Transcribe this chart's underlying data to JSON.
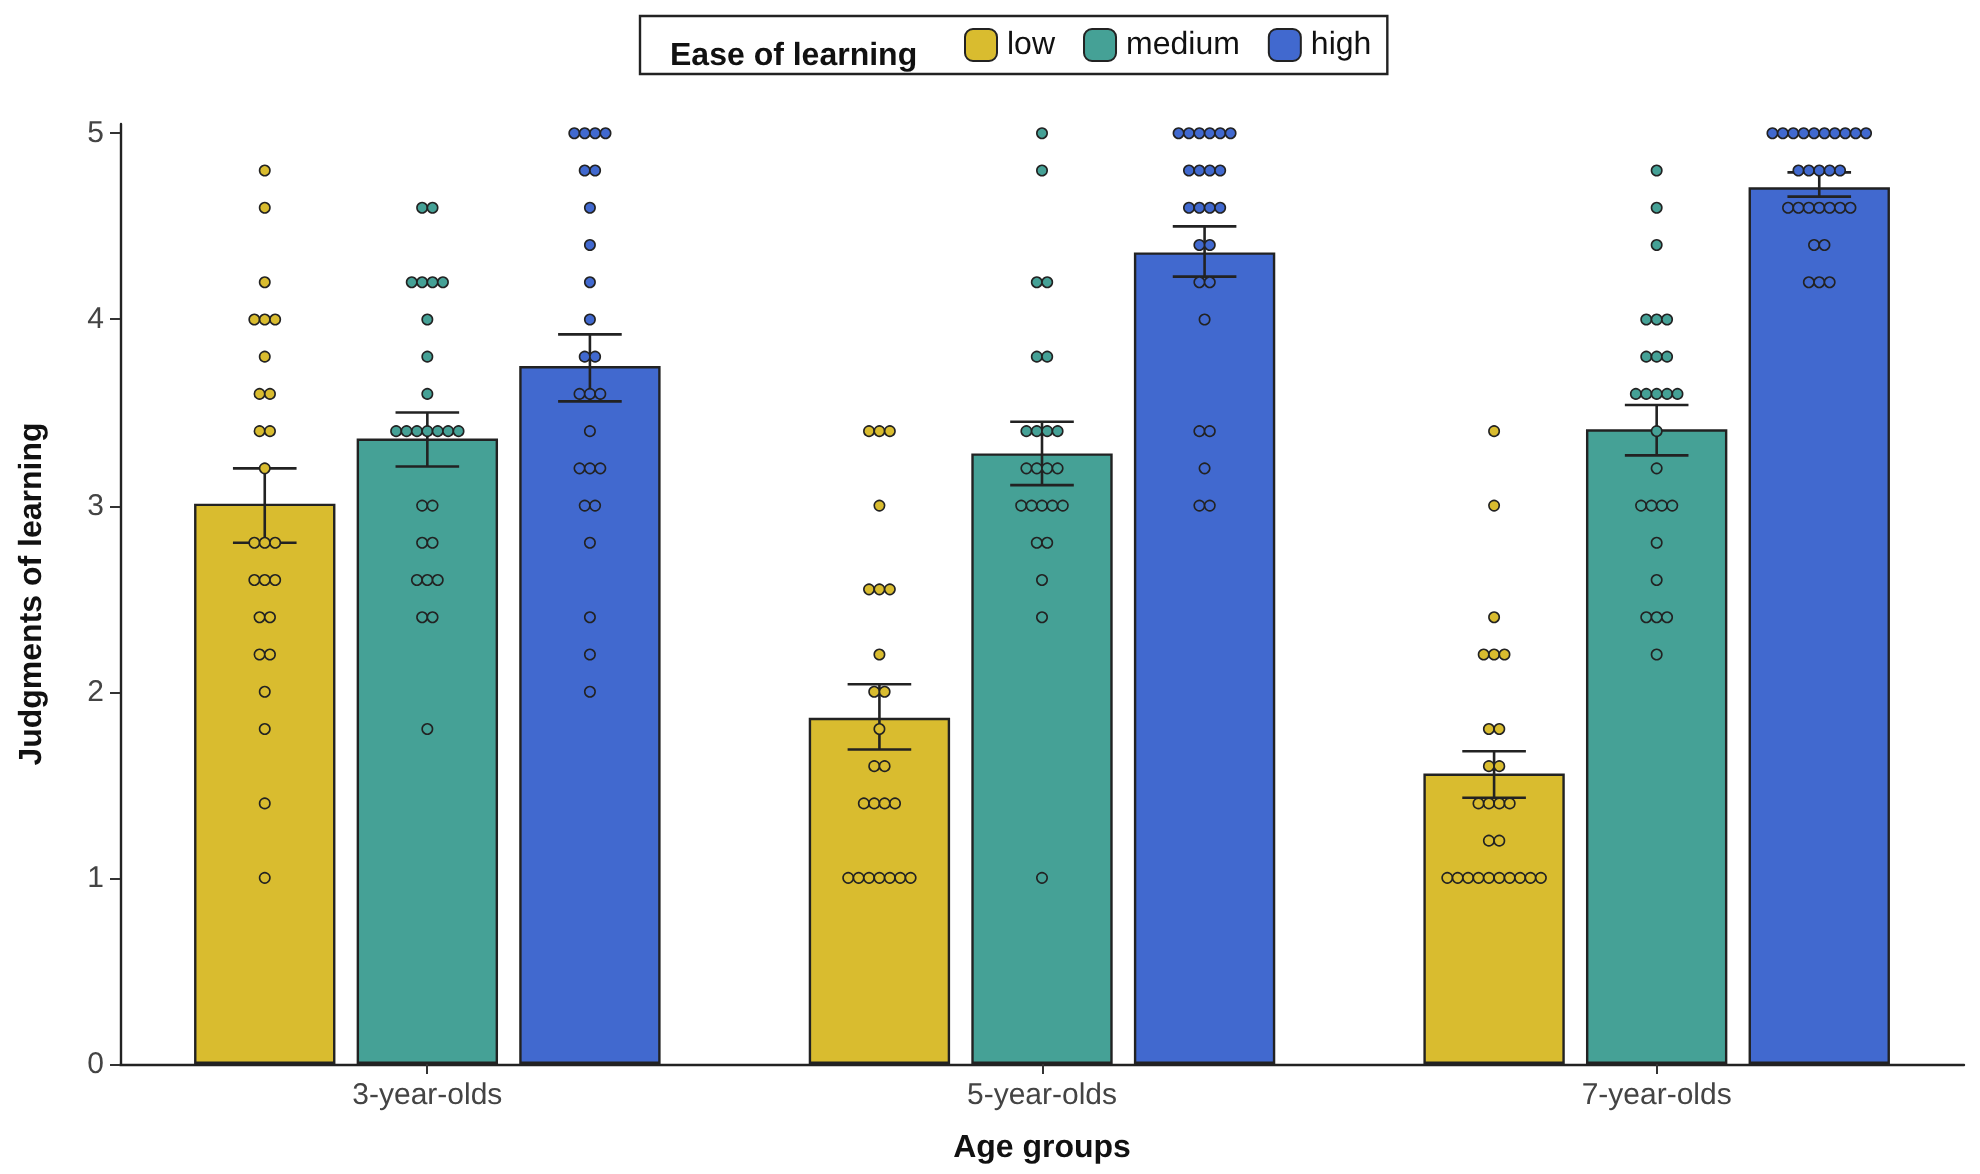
{
  "chart_data": {
    "type": "bar",
    "xlabel": "Age groups",
    "ylabel": "Judgments of learning",
    "legend_title": "Ease of learning",
    "legend": "top",
    "grid": false,
    "marker": "circle",
    "categories": [
      "3-year-olds",
      "5-year-olds",
      "7-year-olds"
    ],
    "ylim": [
      0,
      5.05
    ],
    "yticks": [
      0,
      1,
      2,
      3,
      4,
      5
    ],
    "series": [
      {
        "name": "low",
        "color": "#d9bc2f",
        "values": [
          3.01,
          1.86,
          1.56
        ],
        "errors": [
          [
            2.8,
            3.2
          ],
          [
            1.69,
            2.04
          ],
          [
            1.43,
            1.68
          ]
        ]
      },
      {
        "name": "medium",
        "color": "#45a196",
        "values": [
          3.36,
          3.28,
          3.41
        ],
        "errors": [
          [
            3.21,
            3.5
          ],
          [
            3.11,
            3.45
          ],
          [
            3.27,
            3.54
          ]
        ]
      },
      {
        "name": "high",
        "color": "#4169cf",
        "values": [
          3.75,
          4.36,
          4.71
        ],
        "errors": [
          [
            3.56,
            3.92
          ],
          [
            4.23,
            4.5
          ],
          [
            4.66,
            4.79
          ]
        ]
      },
      {
        "type": "scatter",
        "color": "#d9bc2f",
        "x": [
          "3-year-olds",
          "3-year-olds",
          "3-year-olds",
          "3-year-olds",
          "3-year-olds",
          "3-year-olds",
          "3-year-olds",
          "3-year-olds",
          "3-year-olds",
          "3-year-olds",
          "3-year-olds",
          "3-year-olds",
          "3-year-olds",
          "3-year-olds",
          "3-year-olds",
          "3-year-olds",
          "3-year-olds",
          "3-year-olds",
          "3-year-olds",
          "3-year-olds",
          "3-year-olds",
          "3-year-olds",
          "3-year-olds",
          "3-year-olds",
          "3-year-olds",
          "3-year-olds",
          "5-year-olds",
          "5-year-olds",
          "5-year-olds",
          "5-year-olds",
          "5-year-olds",
          "5-year-olds",
          "5-year-olds",
          "5-year-olds",
          "5-year-olds",
          "5-year-olds",
          "5-year-olds",
          "5-year-olds",
          "5-year-olds",
          "5-year-olds",
          "5-year-olds",
          "5-year-olds",
          "5-year-olds",
          "5-year-olds",
          "5-year-olds",
          "5-year-olds",
          "5-year-olds",
          "5-year-olds",
          "5-year-olds",
          "5-year-olds",
          "7-year-olds",
          "7-year-olds",
          "7-year-olds",
          "7-year-olds",
          "7-year-olds",
          "7-year-olds",
          "7-year-olds",
          "7-year-olds",
          "7-year-olds",
          "7-year-olds",
          "7-year-olds",
          "7-year-olds",
          "7-year-olds",
          "7-year-olds",
          "7-year-olds",
          "7-year-olds",
          "7-year-olds",
          "7-year-olds",
          "7-year-olds",
          "7-year-olds",
          "7-year-olds",
          "7-year-olds",
          "7-year-olds",
          "7-year-olds",
          "7-year-olds",
          "7-year-olds"
        ],
        "values": [
          4.8,
          4.6,
          4.2,
          4.0,
          4.0,
          4.0,
          3.8,
          3.6,
          3.6,
          3.4,
          3.4,
          3.2,
          2.8,
          2.8,
          2.8,
          2.6,
          2.6,
          2.6,
          2.4,
          2.4,
          2.2,
          2.2,
          2.0,
          1.8,
          1.4,
          1.0,
          3.4,
          3.4,
          3.4,
          3.0,
          2.55,
          2.55,
          2.55,
          2.2,
          2.0,
          2.0,
          1.8,
          1.6,
          1.6,
          1.4,
          1.4,
          1.4,
          1.4,
          1.0,
          1.0,
          1.0,
          1.0,
          1.0,
          1.0,
          1.0,
          3.4,
          3.0,
          2.4,
          2.2,
          2.2,
          2.2,
          1.8,
          1.8,
          1.6,
          1.6,
          1.4,
          1.4,
          1.4,
          1.4,
          1.2,
          1.2,
          1.0,
          1.0,
          1.0,
          1.0,
          1.0,
          1.0,
          1.0,
          1.0,
          1.0,
          1.0
        ]
      },
      {
        "type": "scatter",
        "color": "#45a196",
        "x": [
          "3-year-olds",
          "3-year-olds",
          "3-year-olds",
          "3-year-olds",
          "3-year-olds",
          "3-year-olds",
          "3-year-olds",
          "3-year-olds",
          "3-year-olds",
          "3-year-olds",
          "3-year-olds",
          "3-year-olds",
          "3-year-olds",
          "3-year-olds",
          "3-year-olds",
          "3-year-olds",
          "3-year-olds",
          "3-year-olds",
          "3-year-olds",
          "3-year-olds",
          "3-year-olds",
          "3-year-olds",
          "3-year-olds",
          "3-year-olds",
          "3-year-olds",
          "3-year-olds",
          "5-year-olds",
          "5-year-olds",
          "5-year-olds",
          "5-year-olds",
          "5-year-olds",
          "5-year-olds",
          "5-year-olds",
          "5-year-olds",
          "5-year-olds",
          "5-year-olds",
          "5-year-olds",
          "5-year-olds",
          "5-year-olds",
          "5-year-olds",
          "5-year-olds",
          "5-year-olds",
          "5-year-olds",
          "5-year-olds",
          "5-year-olds",
          "5-year-olds",
          "5-year-olds",
          "5-year-olds",
          "5-year-olds",
          "5-year-olds",
          "7-year-olds",
          "7-year-olds",
          "7-year-olds",
          "7-year-olds",
          "7-year-olds",
          "7-year-olds",
          "7-year-olds",
          "7-year-olds",
          "7-year-olds",
          "7-year-olds",
          "7-year-olds",
          "7-year-olds",
          "7-year-olds",
          "7-year-olds",
          "7-year-olds",
          "7-year-olds",
          "7-year-olds",
          "7-year-olds",
          "7-year-olds",
          "7-year-olds",
          "7-year-olds",
          "7-year-olds",
          "7-year-olds",
          "7-year-olds",
          "7-year-olds",
          "7-year-olds"
        ],
        "values": [
          4.6,
          4.6,
          4.2,
          4.2,
          4.2,
          4.2,
          4.0,
          3.8,
          3.6,
          3.4,
          3.4,
          3.4,
          3.4,
          3.4,
          3.4,
          3.4,
          3.0,
          3.0,
          2.8,
          2.8,
          2.6,
          2.6,
          2.6,
          2.4,
          2.4,
          1.8,
          5.0,
          4.8,
          4.2,
          4.2,
          3.8,
          3.8,
          3.4,
          3.4,
          3.4,
          3.4,
          3.2,
          3.2,
          3.2,
          3.2,
          3.0,
          3.0,
          3.0,
          3.0,
          3.0,
          2.8,
          2.8,
          2.6,
          2.4,
          1.0,
          4.8,
          4.6,
          4.4,
          4.0,
          4.0,
          4.0,
          3.8,
          3.8,
          3.8,
          3.6,
          3.6,
          3.6,
          3.6,
          3.6,
          3.4,
          3.2,
          3.0,
          3.0,
          3.0,
          3.0,
          2.8,
          2.6,
          2.4,
          2.4,
          2.4,
          2.2
        ]
      },
      {
        "type": "scatter",
        "color": "#4169cf",
        "x": [
          "3-year-olds",
          "3-year-olds",
          "3-year-olds",
          "3-year-olds",
          "3-year-olds",
          "3-year-olds",
          "3-year-olds",
          "3-year-olds",
          "3-year-olds",
          "3-year-olds",
          "3-year-olds",
          "3-year-olds",
          "3-year-olds",
          "3-year-olds",
          "3-year-olds",
          "3-year-olds",
          "3-year-olds",
          "3-year-olds",
          "3-year-olds",
          "3-year-olds",
          "3-year-olds",
          "3-year-olds",
          "3-year-olds",
          "3-year-olds",
          "3-year-olds",
          "5-year-olds",
          "5-year-olds",
          "5-year-olds",
          "5-year-olds",
          "5-year-olds",
          "5-year-olds",
          "5-year-olds",
          "5-year-olds",
          "5-year-olds",
          "5-year-olds",
          "5-year-olds",
          "5-year-olds",
          "5-year-olds",
          "5-year-olds",
          "5-year-olds",
          "5-year-olds",
          "5-year-olds",
          "5-year-olds",
          "5-year-olds",
          "5-year-olds",
          "5-year-olds",
          "5-year-olds",
          "5-year-olds",
          "5-year-olds",
          "7-year-olds",
          "7-year-olds",
          "7-year-olds",
          "7-year-olds",
          "7-year-olds",
          "7-year-olds",
          "7-year-olds",
          "7-year-olds",
          "7-year-olds",
          "7-year-olds",
          "7-year-olds",
          "7-year-olds",
          "7-year-olds",
          "7-year-olds",
          "7-year-olds",
          "7-year-olds",
          "7-year-olds",
          "7-year-olds",
          "7-year-olds",
          "7-year-olds",
          "7-year-olds",
          "7-year-olds",
          "7-year-olds",
          "7-year-olds",
          "7-year-olds",
          "7-year-olds",
          "7-year-olds"
        ],
        "values": [
          5.0,
          5.0,
          5.0,
          5.0,
          4.8,
          4.8,
          4.6,
          4.4,
          4.2,
          4.0,
          3.8,
          3.8,
          3.6,
          3.6,
          3.6,
          3.4,
          3.2,
          3.2,
          3.2,
          3.0,
          3.0,
          2.8,
          2.4,
          2.2,
          2.0,
          5.0,
          5.0,
          5.0,
          5.0,
          5.0,
          5.0,
          4.8,
          4.8,
          4.8,
          4.8,
          4.6,
          4.6,
          4.6,
          4.6,
          4.4,
          4.4,
          4.2,
          4.2,
          4.0,
          3.4,
          3.4,
          3.2,
          3.0,
          3.0,
          5.0,
          5.0,
          5.0,
          5.0,
          5.0,
          5.0,
          5.0,
          5.0,
          5.0,
          5.0,
          4.8,
          4.8,
          4.8,
          4.8,
          4.8,
          4.6,
          4.6,
          4.6,
          4.6,
          4.6,
          4.6,
          4.6,
          4.4,
          4.4,
          4.2,
          4.2,
          4.2
        ]
      }
    ]
  }
}
